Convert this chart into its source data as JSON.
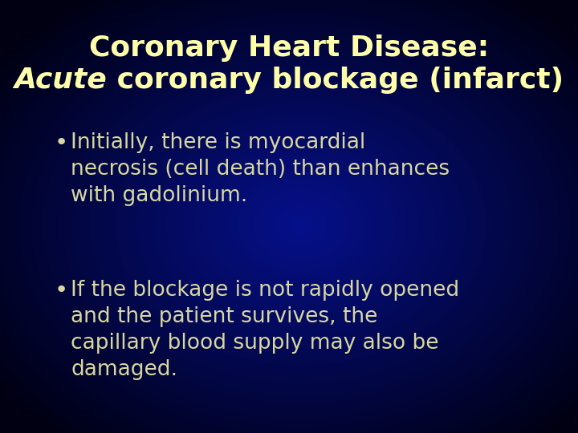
{
  "title_line1": "Coronary Heart Disease:",
  "title_line2_italic": "Acute",
  "title_line2_normal": " coronary blockage (infarct)",
  "bullet1_lines": [
    "Initially, there is myocardial",
    "necrosis (cell death) than enhances",
    "with gadolinium."
  ],
  "bullet2_lines": [
    "If the blockage is not rapidly opened",
    "and the patient survives, the",
    "capillary blood supply may also be",
    "damaged."
  ],
  "title_color": "#ffffaa",
  "bullet_color": "#d8d8a0",
  "title_fontsize": 26,
  "bullet_fontsize": 19,
  "fig_width": 7.2,
  "fig_height": 5.4,
  "dpi": 100
}
